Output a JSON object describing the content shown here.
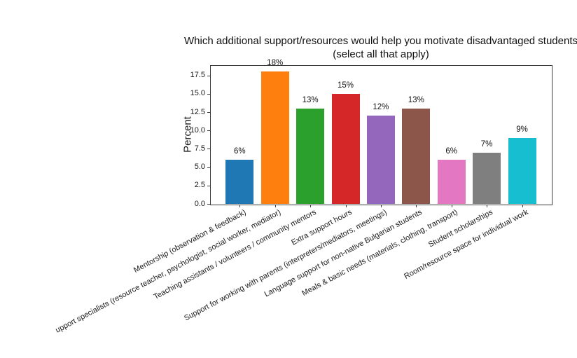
{
  "chart_data": {
    "type": "bar",
    "title": "Which additional support/resources would help you motivate disadvantaged students",
    "subtitle": "(select all that apply)",
    "xlabel": "",
    "ylabel": "Percent",
    "categories": [
      "Mentorship (observation & feedback)",
      "upport specialists (resource teacher, psychologist, social worker, mediator)",
      "Teaching assistants / volunteers / community mentors",
      "Extra support hours",
      "Support for working with parents (interpreters/mediators, meetings)",
      "Language support for non-native Bulgarian students",
      "Meals & basic needs (materials, clothing, transport)",
      "Student scholarships",
      "Room/resource space for individual work"
    ],
    "values": [
      6,
      18,
      13,
      15,
      12,
      13,
      6,
      7,
      9
    ],
    "bar_labels": [
      "6%",
      "18%",
      "13%",
      "15%",
      "12%",
      "13%",
      "6%",
      "7%",
      "9%"
    ],
    "bar_colors": [
      "#1f77b4",
      "#ff7f0e",
      "#2ca02c",
      "#d62728",
      "#9467bd",
      "#8c564b",
      "#e377c2",
      "#7f7f7f",
      "#17becf"
    ],
    "yticks": [
      "0.0",
      "2.5",
      "5.0",
      "7.5",
      "10.0",
      "12.5",
      "15.0",
      "17.5"
    ],
    "ylim": [
      0,
      18.9
    ],
    "grid": false,
    "legend": "none",
    "style": {
      "spine_color": "#3a3a3a",
      "text_color": "#1a1a1a",
      "background": "#ffffff"
    }
  }
}
